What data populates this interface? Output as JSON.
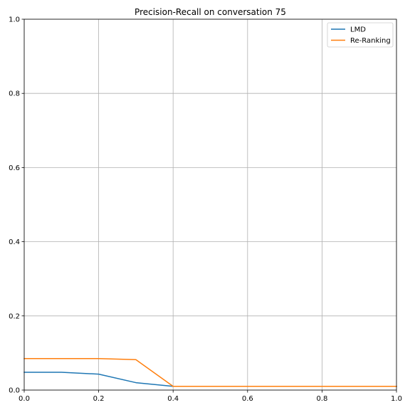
{
  "chart_data": {
    "type": "line",
    "title": "Precision-Recall on conversation 75",
    "xlabel": "",
    "ylabel": "",
    "xlim": [
      0.0,
      1.0
    ],
    "ylim": [
      0.0,
      1.0
    ],
    "xticks": [
      0.0,
      0.2,
      0.4,
      0.6,
      0.8,
      1.0
    ],
    "yticks": [
      0.0,
      0.2,
      0.4,
      0.6,
      0.8,
      1.0
    ],
    "xtick_labels": [
      "0.0",
      "0.2",
      "0.4",
      "0.6",
      "0.8",
      "1.0"
    ],
    "ytick_labels": [
      "0.0",
      "0.2",
      "0.4",
      "0.6",
      "0.8",
      "1.0"
    ],
    "grid": true,
    "legend_position": "top-right",
    "series": [
      {
        "name": "LMD",
        "color": "#1f77b4",
        "x": [
          0.0,
          0.1,
          0.2,
          0.3,
          0.4,
          0.5,
          0.6,
          0.7,
          0.8,
          0.9,
          1.0
        ],
        "y": [
          0.048,
          0.048,
          0.043,
          0.02,
          0.01,
          0.01,
          0.01,
          0.01,
          0.01,
          0.01,
          0.01
        ]
      },
      {
        "name": "Re-Ranking",
        "color": "#ff7f0e",
        "x": [
          0.0,
          0.1,
          0.2,
          0.3,
          0.4,
          0.5,
          0.6,
          0.7,
          0.8,
          0.9,
          1.0
        ],
        "y": [
          0.085,
          0.085,
          0.085,
          0.082,
          0.01,
          0.01,
          0.01,
          0.01,
          0.01,
          0.01,
          0.01
        ]
      }
    ]
  }
}
